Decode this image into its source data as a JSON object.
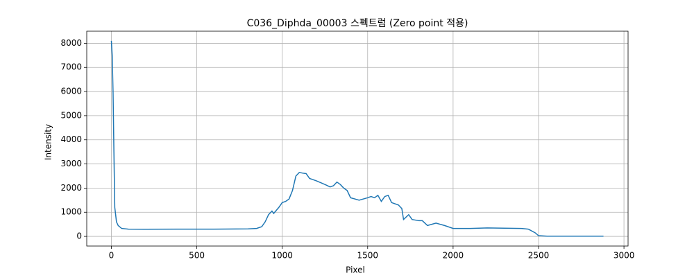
{
  "chart_data": {
    "type": "line",
    "title": "C036_Diphda_00003 스펙트럼 (Zero point 적용)",
    "x_label": "Pixel",
    "y_label": "Intensity",
    "x": [
      0,
      5,
      10,
      15,
      20,
      30,
      40,
      60,
      100,
      200,
      400,
      600,
      800,
      850,
      880,
      900,
      920,
      940,
      950,
      980,
      1000,
      1020,
      1040,
      1060,
      1080,
      1100,
      1120,
      1140,
      1160,
      1180,
      1200,
      1250,
      1280,
      1300,
      1320,
      1340,
      1360,
      1380,
      1400,
      1450,
      1500,
      1520,
      1540,
      1560,
      1580,
      1600,
      1620,
      1640,
      1680,
      1700,
      1710,
      1740,
      1760,
      1800,
      1820,
      1850,
      1900,
      1950,
      2000,
      2100,
      2200,
      2300,
      2400,
      2440,
      2480,
      2500,
      2550,
      2880
    ],
    "series": [
      {
        "name": "spectrum",
        "color": "#1f77b4",
        "values": [
          8100,
          7500,
          6000,
          3500,
          1200,
          600,
          450,
          330,
          300,
          295,
          300,
          300,
          310,
          330,
          400,
          600,
          900,
          1050,
          950,
          1200,
          1400,
          1450,
          1550,
          1900,
          2500,
          2650,
          2620,
          2600,
          2400,
          2350,
          2300,
          2150,
          2050,
          2100,
          2250,
          2150,
          2000,
          1900,
          1600,
          1500,
          1600,
          1650,
          1600,
          1700,
          1450,
          1650,
          1700,
          1400,
          1300,
          1150,
          700,
          900,
          700,
          650,
          650,
          450,
          550,
          450,
          330,
          330,
          350,
          340,
          330,
          300,
          150,
          30,
          10,
          10
        ]
      }
    ],
    "xlim": [
      -144,
      3024
    ],
    "ylim": [
      -400,
      8500
    ],
    "xticks": [
      0,
      500,
      1000,
      1500,
      2000,
      2500,
      3000
    ],
    "yticks": [
      0,
      1000,
      2000,
      3000,
      4000,
      5000,
      6000,
      7000,
      8000
    ],
    "grid": true
  }
}
